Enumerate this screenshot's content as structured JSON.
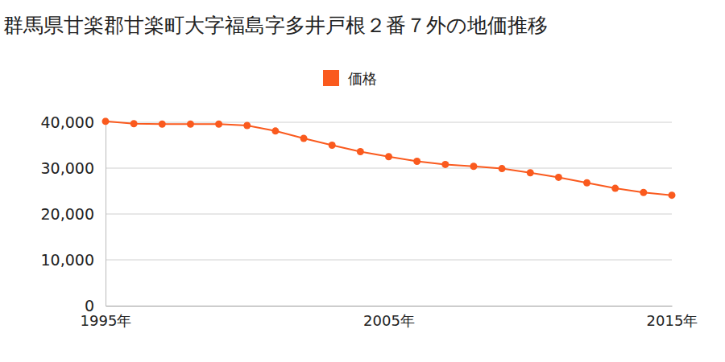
{
  "chart_data": {
    "type": "line",
    "title": "群馬県甘楽郡甘楽町大字福島字多井戸根２番７外の地価推移",
    "x": [
      1995,
      1996,
      1997,
      1998,
      1999,
      2000,
      2001,
      2002,
      2003,
      2004,
      2005,
      2006,
      2007,
      2008,
      2009,
      2010,
      2011,
      2012,
      2013,
      2014,
      2015
    ],
    "series": [
      {
        "name": "価格",
        "color": "#fa5a1e",
        "marker": "circle",
        "values": [
          40200,
          39700,
          39600,
          39600,
          39600,
          39300,
          38100,
          36500,
          35000,
          33600,
          32500,
          31500,
          30800,
          30400,
          29900,
          29000,
          28000,
          26800,
          25600,
          24700,
          24100
        ]
      }
    ],
    "xlim": [
      1995,
      2015
    ],
    "xticks": [
      {
        "value": 1995,
        "label": "1995年"
      },
      {
        "value": 2005,
        "label": "2005年"
      },
      {
        "value": 2015,
        "label": "2015年"
      }
    ],
    "ylim": [
      0,
      41000
    ],
    "yticks": [
      0,
      {
        "value": 10000,
        "label": "10,000"
      },
      {
        "value": 20000,
        "label": "20,000"
      },
      {
        "value": 30000,
        "label": "30,000"
      },
      {
        "value": 40000,
        "label": "40,000"
      }
    ],
    "grid": true,
    "legend": "top"
  }
}
